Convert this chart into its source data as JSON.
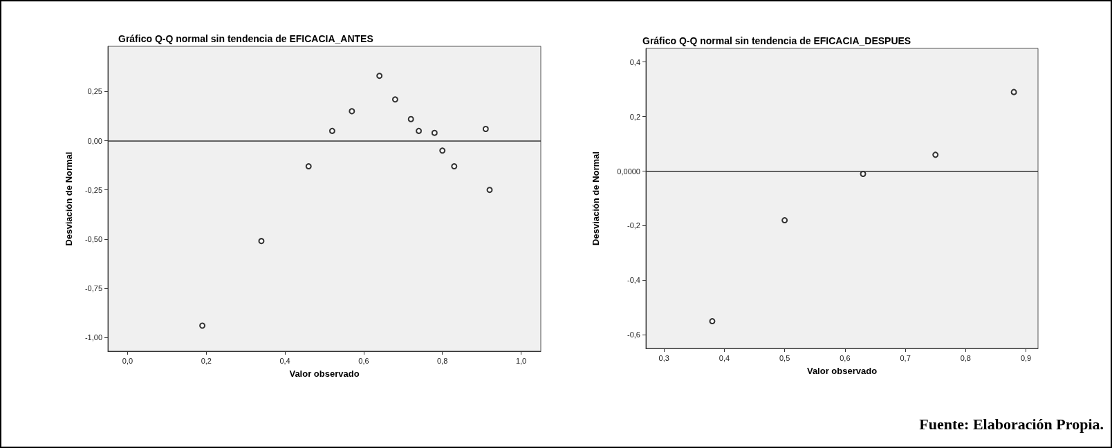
{
  "chart_data": [
    {
      "type": "scatter",
      "title": "Gráfico Q-Q normal sin tendencia de EFICACIA_ANTES",
      "xlabel": "Valor observado",
      "ylabel": "Desviación de Normal",
      "series": [
        {
          "color": "#000000",
          "x": [
            0.19,
            0.34,
            0.46,
            0.52,
            0.57,
            0.64,
            0.68,
            0.72,
            0.74,
            0.78,
            0.8,
            0.83,
            0.91,
            0.92
          ],
          "values": [
            -0.94,
            -0.51,
            -0.13,
            0.05,
            0.15,
            0.33,
            0.21,
            0.11,
            0.05,
            0.04,
            -0.05,
            -0.13,
            0.06,
            -0.25
          ]
        }
      ],
      "xlim": [
        -0.05,
        1.05
      ],
      "xticks": [
        {
          "value": 0,
          "label": "0,0"
        },
        {
          "value": 0.2,
          "label": "0,2"
        },
        {
          "value": 0.4,
          "label": "0,4"
        },
        {
          "value": 0.6,
          "label": "0,6"
        },
        {
          "value": 0.8,
          "label": "0,8"
        },
        {
          "value": 1,
          "label": "1,0"
        }
      ],
      "ylim": [
        -1.07,
        0.48
      ],
      "yticks": [
        {
          "value": -1,
          "label": "-1,00"
        },
        {
          "value": -0.75,
          "label": "-0,75"
        },
        {
          "value": -0.5,
          "label": "-0,50"
        },
        {
          "value": -0.25,
          "label": "-0,25"
        },
        {
          "value": 0,
          "label": "0,00"
        },
        {
          "value": 0.25,
          "label": "0,25"
        }
      ],
      "ref_lines": [
        {
          "axis": "y",
          "value": 0,
          "color": "#333333"
        }
      ],
      "marker": "circle",
      "grid": false
    },
    {
      "type": "scatter",
      "title": "Gráfico Q-Q normal sin tendencia de EFICACIA_DESPUES",
      "xlabel": "Valor observado",
      "ylabel": "Desviación de Normal",
      "series": [
        {
          "color": "#000000",
          "x": [
            0.38,
            0.5,
            0.63,
            0.75,
            0.88
          ],
          "values": [
            -0.55,
            -0.18,
            -0.01,
            0.06,
            0.29
          ]
        }
      ],
      "xlim": [
        0.27,
        0.92
      ],
      "xticks": [
        {
          "value": 0.3,
          "label": "0,3"
        },
        {
          "value": 0.4,
          "label": "0,4"
        },
        {
          "value": 0.5,
          "label": "0,5"
        },
        {
          "value": 0.6,
          "label": "0,6"
        },
        {
          "value": 0.7,
          "label": "0,7"
        },
        {
          "value": 0.8,
          "label": "0,8"
        },
        {
          "value": 0.9,
          "label": "0,9"
        }
      ],
      "ylim": [
        -0.65,
        0.45
      ],
      "yticks": [
        {
          "value": -0.6,
          "label": "-0,6"
        },
        {
          "value": -0.4,
          "label": "-0,4"
        },
        {
          "value": -0.2,
          "label": "-0,2"
        },
        {
          "value": 0,
          "label": "0,0000"
        },
        {
          "value": 0.2,
          "label": "0,2"
        },
        {
          "value": 0.4,
          "label": "0,4"
        }
      ],
      "ref_lines": [
        {
          "axis": "y",
          "value": 0,
          "color": "#333333"
        }
      ],
      "annotations": [
        "Fuente: Elaboración Propia."
      ],
      "marker": "circle",
      "grid": false
    }
  ]
}
